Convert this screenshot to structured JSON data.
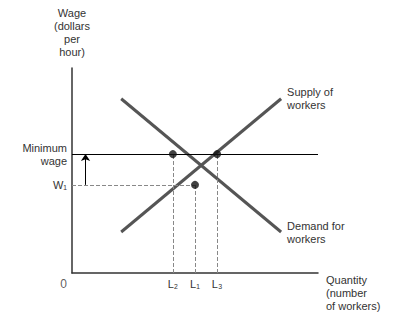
{
  "chart_data": {
    "type": "line",
    "x_label": "Quantity\n(number\nof workers)",
    "y_label": "Wage\n(dollars\nper\nhour)",
    "xlim": [
      0,
      10
    ],
    "ylim": [
      0,
      10
    ],
    "xticks": [],
    "yticks": [],
    "tick_labels": false,
    "grid": false,
    "origin_label": "0",
    "series": [
      {
        "name": "Supply of\nworkers",
        "color": "#555555",
        "x": [
          2.0,
          8.5
        ],
        "values": [
          2.0,
          8.5
        ]
      },
      {
        "name": "Demand for\nworkers",
        "color": "#555555",
        "x": [
          2.0,
          8.5
        ],
        "values": [
          8.5,
          2.0
        ]
      }
    ],
    "min_wage": {
      "y": 5.8,
      "label": "Minimum\nwage"
    },
    "markers": {
      "color": "#111111",
      "points": [
        {
          "x": 4.1,
          "y": 5.8,
          "label": "L₂"
        },
        {
          "x": 5.0,
          "y": 4.3,
          "label": "L₁",
          "wage_label": "W₁"
        },
        {
          "x": 5.9,
          "y": 5.8,
          "label": "L₃"
        }
      ]
    },
    "arrow": {
      "x": 0.55,
      "from": 4.3,
      "to": 5.8
    }
  }
}
